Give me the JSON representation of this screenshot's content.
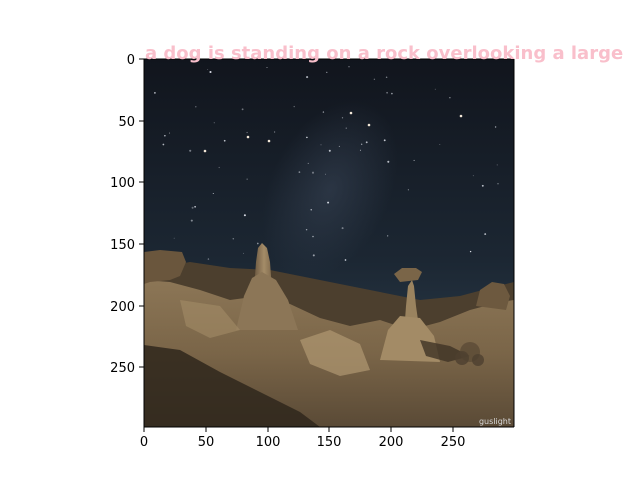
{
  "caption": {
    "text": "a dog is standing on a rock overlooking a large",
    "color": "#f9bfcb"
  },
  "photo": {
    "watermark": "guslight",
    "sky_top_color": "#12161f",
    "sky_horizon_color": "#2d3e4c",
    "rock_light_color": "#9c8664",
    "rock_dark_color": "#3f3325"
  },
  "axes": {
    "x_ticks": [
      "0",
      "50",
      "100",
      "150",
      "200",
      "250"
    ],
    "y_ticks": [
      "0",
      "50",
      "100",
      "150",
      "200",
      "250"
    ]
  }
}
